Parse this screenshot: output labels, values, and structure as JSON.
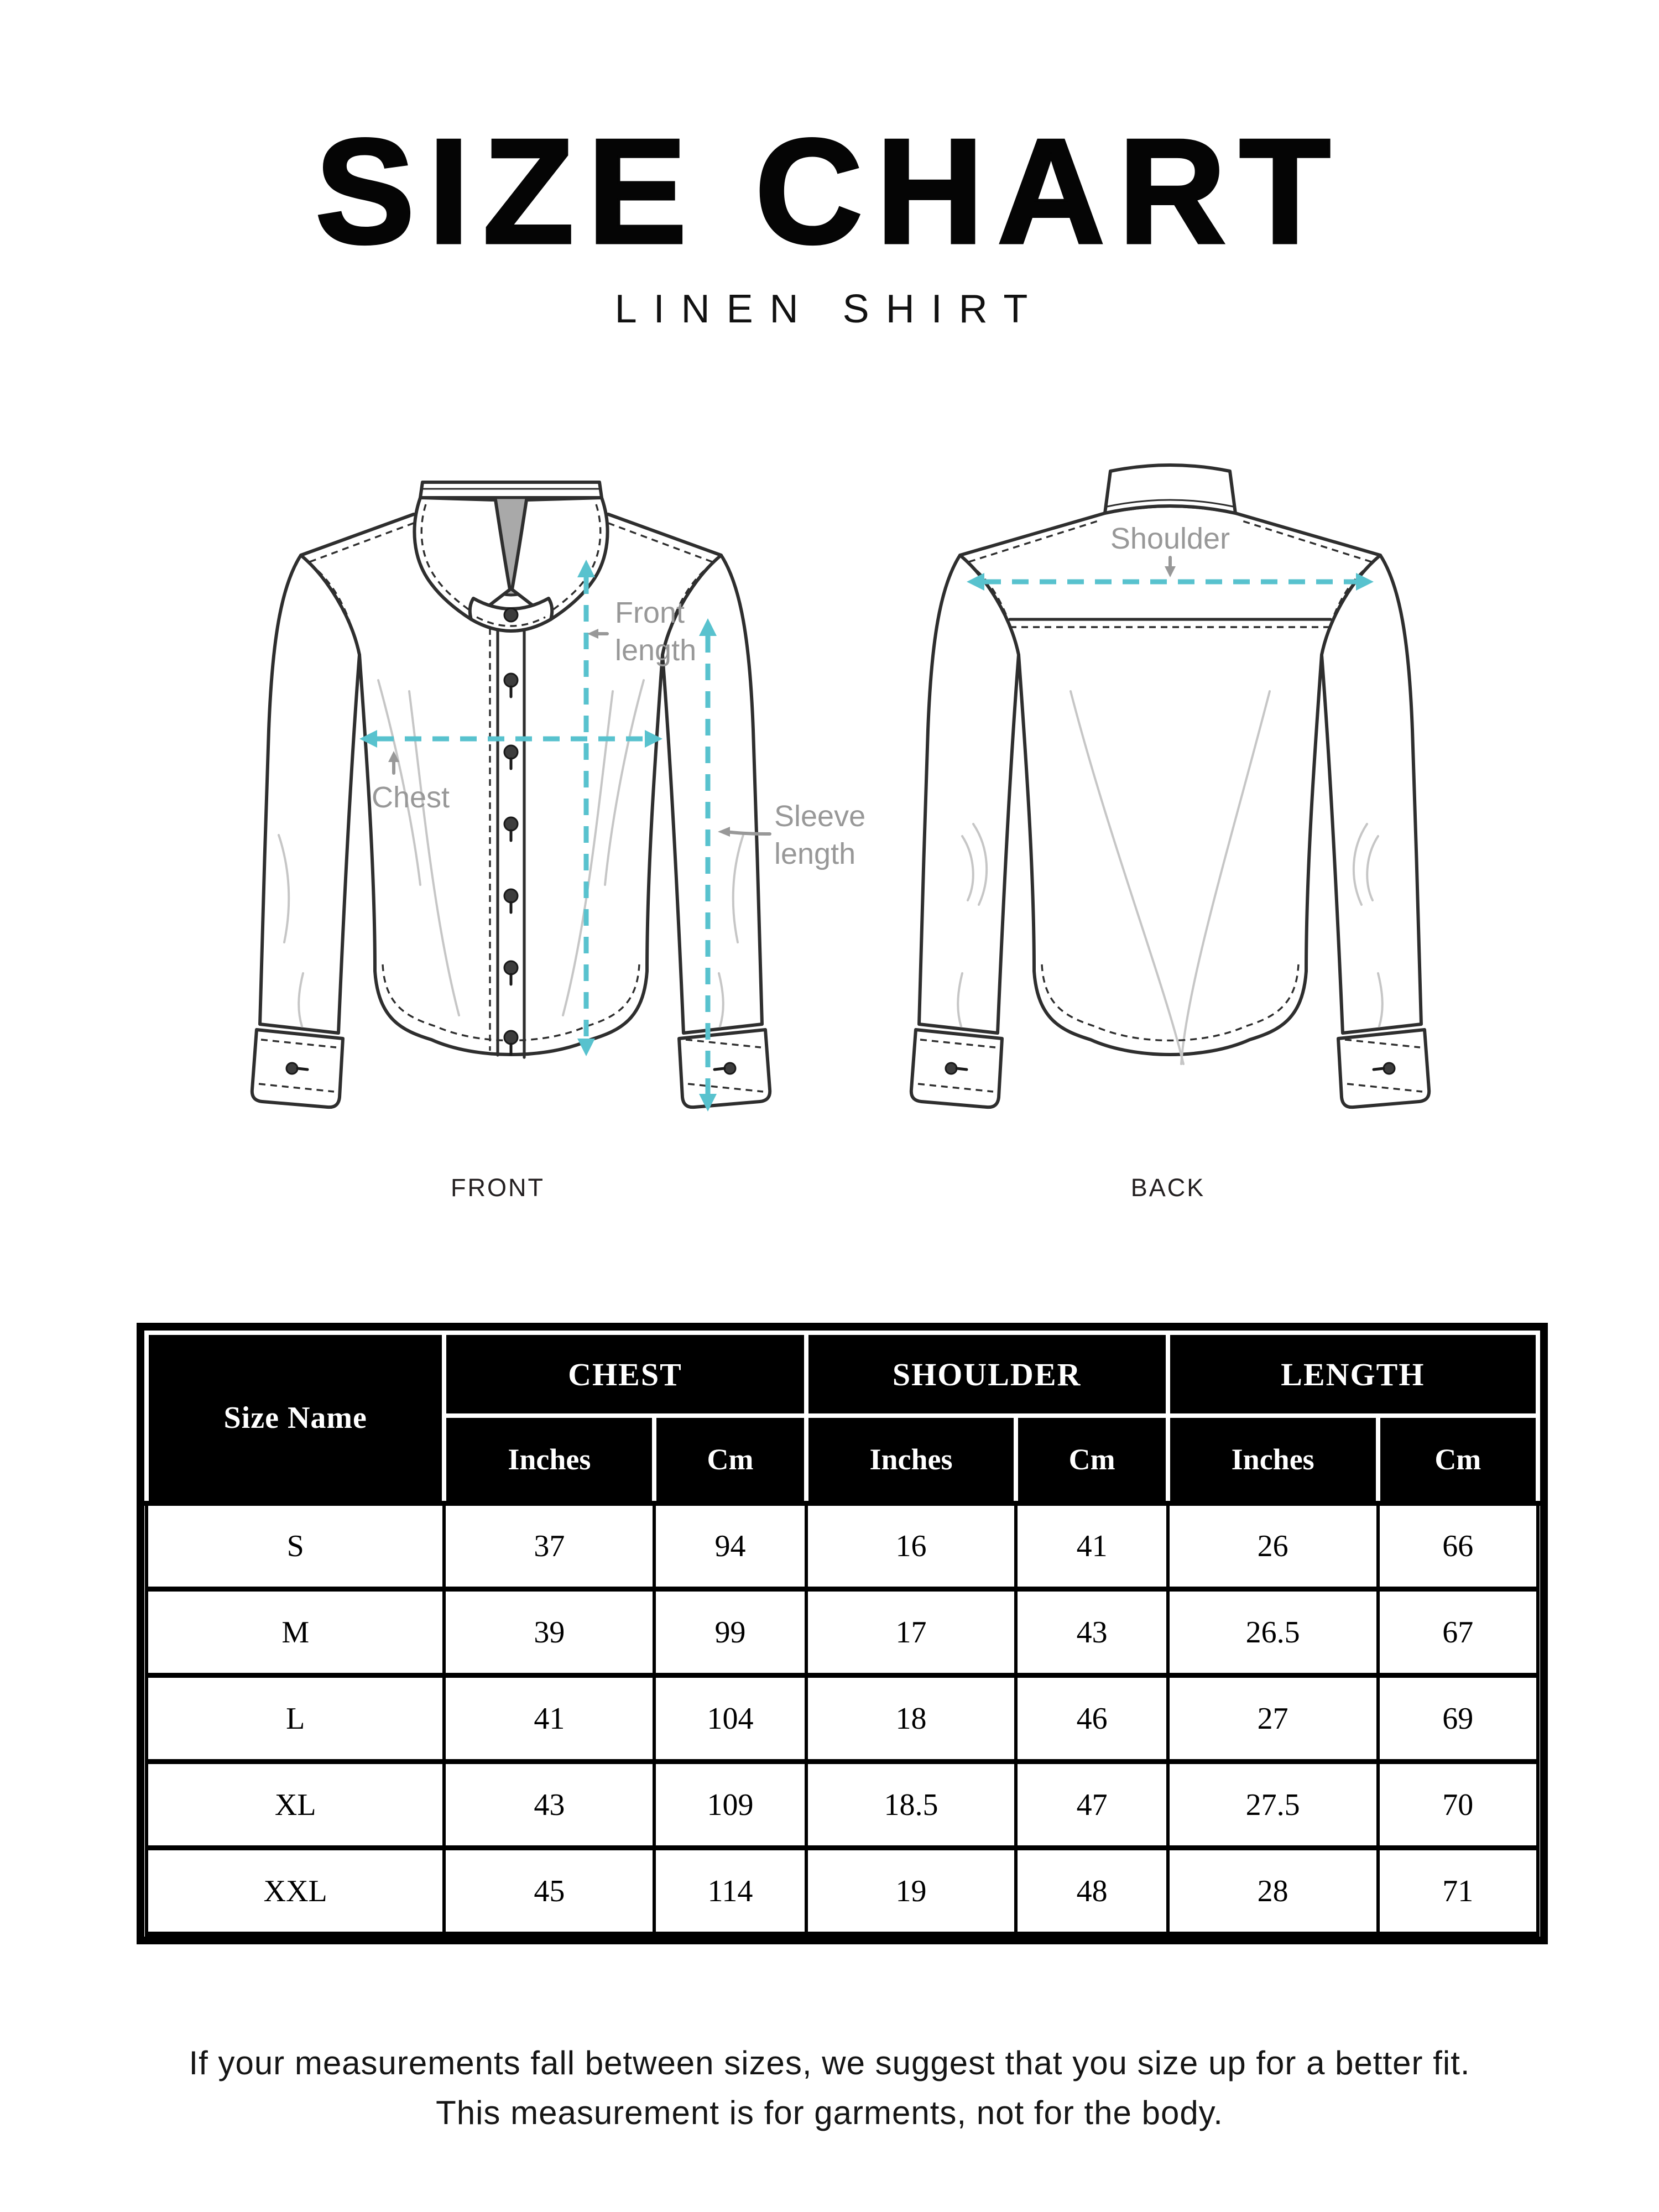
{
  "header": {
    "title": "SIZE CHART",
    "subtitle": "LINEN SHIRT"
  },
  "diagram": {
    "front": {
      "caption": "FRONT",
      "labels": {
        "front_length_line1": "Front",
        "front_length_line2": "length",
        "chest": "Chest",
        "sleeve_length_line1": "Sleeve",
        "sleeve_length_line2": "length"
      }
    },
    "back": {
      "caption": "BACK",
      "labels": {
        "shoulder": "Shoulder"
      }
    },
    "icons": {
      "front_length_pointer": "←",
      "chest_pointer": "↑",
      "shoulder_pointer": "↓",
      "sleeve_length_pointer": "←"
    },
    "colors": {
      "measurement_line": "#58c2ce",
      "annotation_text": "#989898",
      "line_art": "#2e2e2e",
      "collar_shadow": "#a9a9a9"
    }
  },
  "size_table": {
    "corner_label": "Size Name",
    "column_groups": [
      {
        "label": "CHEST",
        "subcolumns": [
          "Inches",
          "Cm"
        ]
      },
      {
        "label": "SHOULDER",
        "subcolumns": [
          "Inches",
          "Cm"
        ]
      },
      {
        "label": "LENGTH",
        "subcolumns": [
          "Inches",
          "Cm"
        ]
      }
    ],
    "rows": [
      {
        "size": "S",
        "values": [
          "37",
          "94",
          "16",
          "41",
          "26",
          "66"
        ]
      },
      {
        "size": "M",
        "values": [
          "39",
          "99",
          "17",
          "43",
          "26.5",
          "67"
        ]
      },
      {
        "size": "L",
        "values": [
          "41",
          "104",
          "18",
          "46",
          "27",
          "69"
        ]
      },
      {
        "size": "XL",
        "values": [
          "43",
          "109",
          "18.5",
          "47",
          "27.5",
          "70"
        ]
      },
      {
        "size": "XXL",
        "values": [
          "45",
          "114",
          "19",
          "48",
          "28",
          "71"
        ]
      }
    ]
  },
  "footer": {
    "line1": "If your measurements fall between sizes, we suggest that you size up for a better fit.",
    "line2": "This measurement is for garments, not for the body."
  },
  "chart_data": {
    "type": "table",
    "title": "SIZE CHART — LINEN SHIRT",
    "columns": [
      "Size Name",
      "Chest Inches",
      "Chest Cm",
      "Shoulder Inches",
      "Shoulder Cm",
      "Length Inches",
      "Length Cm"
    ],
    "rows": [
      [
        "S",
        37,
        94,
        16,
        41,
        26,
        66
      ],
      [
        "M",
        39,
        99,
        17,
        43,
        26.5,
        67
      ],
      [
        "L",
        41,
        104,
        18,
        46,
        27,
        69
      ],
      [
        "XL",
        43,
        109,
        18.5,
        47,
        27.5,
        70
      ],
      [
        "XXL",
        45,
        114,
        19,
        48,
        28,
        71
      ]
    ]
  }
}
